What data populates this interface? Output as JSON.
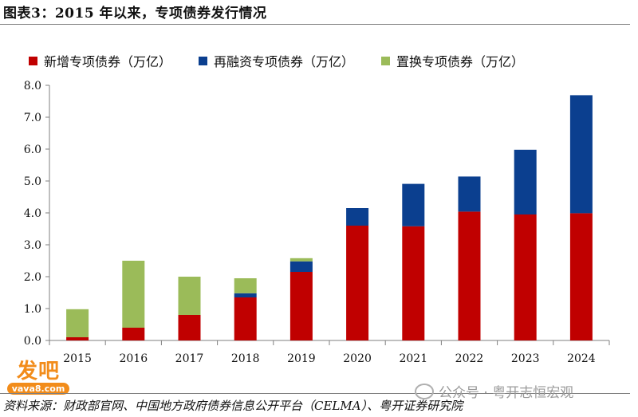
{
  "title": "图表3：2015 年以来，专项债券发行情况",
  "source": "资料来源：财政部官网、中国地方政府债券信息公开平台（CELMA）、粤开证券研究院",
  "watermark_left": {
    "logo_text": "发吧",
    "url_text": "vava8.com"
  },
  "watermark_right": {
    "text": "公众号 · 粤开志恒宏观",
    "icon": "wechat-icon"
  },
  "colors": {
    "new": "#c00000",
    "refinance": "#0b3f8f",
    "replace": "#9bbb59"
  },
  "chart_data": {
    "type": "bar",
    "stacked": true,
    "categories": [
      "2015",
      "2016",
      "2017",
      "2018",
      "2019",
      "2020",
      "2021",
      "2022",
      "2023",
      "2024"
    ],
    "series": [
      {
        "name": "新增专项债券（万亿）",
        "values": [
          0.1,
          0.4,
          0.8,
          1.35,
          2.15,
          3.6,
          3.58,
          4.04,
          3.95,
          3.99
        ]
      },
      {
        "name": "再融资专项债券（万亿）",
        "values": [
          0.0,
          0.0,
          0.0,
          0.13,
          0.33,
          0.55,
          1.33,
          1.1,
          2.03,
          3.7
        ]
      },
      {
        "name": "置换专项债券（万亿）",
        "values": [
          0.88,
          2.1,
          1.2,
          0.47,
          0.1,
          0.0,
          0.0,
          0.0,
          0.0,
          0.0
        ]
      }
    ],
    "yticks": [
      "0.0",
      "1.0",
      "2.0",
      "3.0",
      "4.0",
      "5.0",
      "6.0",
      "7.0",
      "8.0"
    ],
    "ylim": [
      0,
      8
    ],
    "grid": false,
    "legend_position": "top"
  }
}
